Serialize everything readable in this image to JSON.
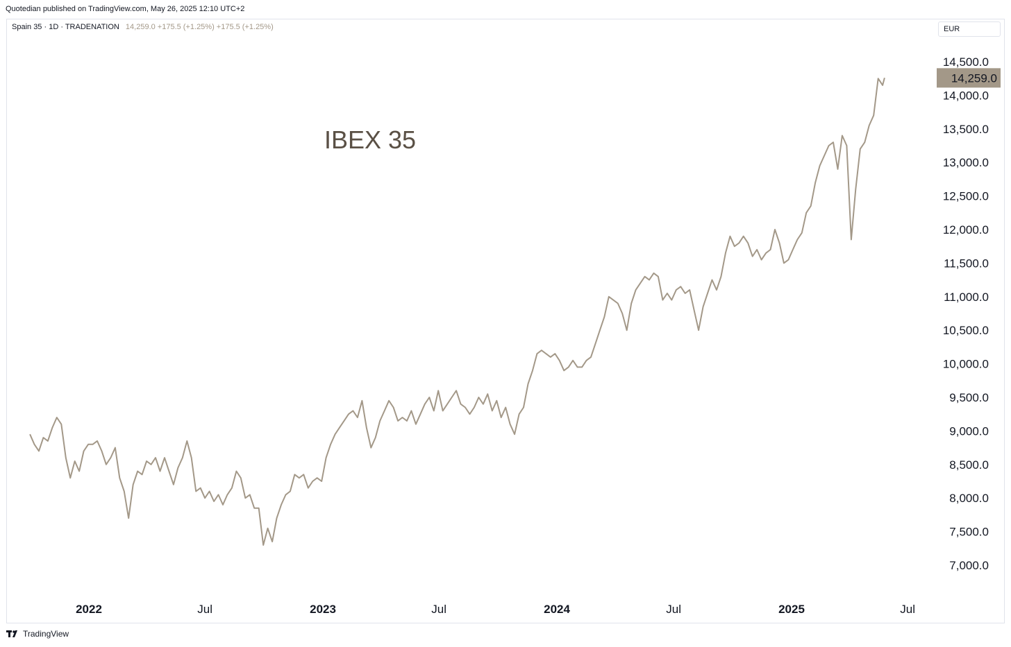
{
  "header": {
    "publisher": "Quotedian published on TradingView.com, May 26, 2025 12:10 UTC+2",
    "symbol": "Spain 35 · 1D · TRADENATION",
    "values": "14,259.0 +175.5 (+1.25%) +175.5 (+1.25%)"
  },
  "currency": "EUR",
  "footer": {
    "brand": "TradingView"
  },
  "colors": {
    "line": "#a39888",
    "price_tag": "#a39888"
  },
  "chart_data": {
    "type": "line",
    "title": "IBEX 35",
    "ylim": [
      6700,
      14500
    ],
    "y_ticks": [
      "7,000.0",
      "7,500.0",
      "8,000.0",
      "8,500.0",
      "9,000.0",
      "9,500.0",
      "10,000.0",
      "10,500.0",
      "11,000.0",
      "11,500.0",
      "12,000.0",
      "12,500.0",
      "13,000.0",
      "13,500.0",
      "14,000.0",
      "14,500.0"
    ],
    "x_ticks": [
      {
        "label": "2022",
        "date": "2022-01-01",
        "major": true
      },
      {
        "label": "Jul",
        "date": "2022-07-01",
        "major": false
      },
      {
        "label": "2023",
        "date": "2023-01-01",
        "major": true
      },
      {
        "label": "Jul",
        "date": "2023-07-01",
        "major": false
      },
      {
        "label": "2024",
        "date": "2024-01-01",
        "major": true
      },
      {
        "label": "Jul",
        "date": "2024-07-01",
        "major": false
      },
      {
        "label": "2025",
        "date": "2025-01-01",
        "major": true
      },
      {
        "label": "Jul",
        "date": "2025-07-01",
        "major": false
      }
    ],
    "last_price": "14,259.0",
    "series": [
      {
        "points": [
          [
            "2021-10-01",
            8950
          ],
          [
            "2021-10-08",
            8800
          ],
          [
            "2021-10-15",
            8700
          ],
          [
            "2021-10-22",
            8900
          ],
          [
            "2021-10-29",
            8850
          ],
          [
            "2021-11-05",
            9050
          ],
          [
            "2021-11-12",
            9200
          ],
          [
            "2021-11-19",
            9100
          ],
          [
            "2021-11-26",
            8600
          ],
          [
            "2021-12-03",
            8300
          ],
          [
            "2021-12-10",
            8550
          ],
          [
            "2021-12-17",
            8400
          ],
          [
            "2021-12-24",
            8700
          ],
          [
            "2021-12-31",
            8800
          ],
          [
            "2022-01-07",
            8800
          ],
          [
            "2022-01-14",
            8850
          ],
          [
            "2022-01-21",
            8700
          ],
          [
            "2022-01-28",
            8500
          ],
          [
            "2022-02-04",
            8600
          ],
          [
            "2022-02-11",
            8750
          ],
          [
            "2022-02-18",
            8300
          ],
          [
            "2022-02-25",
            8100
          ],
          [
            "2022-03-04",
            7700
          ],
          [
            "2022-03-11",
            8200
          ],
          [
            "2022-03-18",
            8400
          ],
          [
            "2022-03-25",
            8350
          ],
          [
            "2022-04-01",
            8550
          ],
          [
            "2022-04-08",
            8500
          ],
          [
            "2022-04-15",
            8600
          ],
          [
            "2022-04-22",
            8400
          ],
          [
            "2022-04-29",
            8600
          ],
          [
            "2022-05-06",
            8400
          ],
          [
            "2022-05-13",
            8200
          ],
          [
            "2022-05-20",
            8450
          ],
          [
            "2022-05-27",
            8600
          ],
          [
            "2022-06-03",
            8850
          ],
          [
            "2022-06-10",
            8600
          ],
          [
            "2022-06-17",
            8100
          ],
          [
            "2022-06-24",
            8150
          ],
          [
            "2022-07-01",
            8000
          ],
          [
            "2022-07-08",
            8100
          ],
          [
            "2022-07-15",
            7950
          ],
          [
            "2022-07-22",
            8050
          ],
          [
            "2022-07-29",
            7900
          ],
          [
            "2022-08-05",
            8050
          ],
          [
            "2022-08-12",
            8150
          ],
          [
            "2022-08-19",
            8400
          ],
          [
            "2022-08-26",
            8300
          ],
          [
            "2022-09-02",
            8000
          ],
          [
            "2022-09-09",
            8050
          ],
          [
            "2022-09-16",
            7850
          ],
          [
            "2022-09-23",
            7850
          ],
          [
            "2022-09-30",
            7300
          ],
          [
            "2022-10-07",
            7550
          ],
          [
            "2022-10-14",
            7350
          ],
          [
            "2022-10-21",
            7700
          ],
          [
            "2022-10-28",
            7900
          ],
          [
            "2022-11-04",
            8050
          ],
          [
            "2022-11-11",
            8100
          ],
          [
            "2022-11-18",
            8350
          ],
          [
            "2022-11-25",
            8300
          ],
          [
            "2022-12-02",
            8350
          ],
          [
            "2022-12-09",
            8150
          ],
          [
            "2022-12-16",
            8250
          ],
          [
            "2022-12-23",
            8300
          ],
          [
            "2022-12-30",
            8250
          ],
          [
            "2023-01-06",
            8600
          ],
          [
            "2023-01-13",
            8800
          ],
          [
            "2023-01-20",
            8950
          ],
          [
            "2023-01-27",
            9050
          ],
          [
            "2023-02-03",
            9150
          ],
          [
            "2023-02-10",
            9250
          ],
          [
            "2023-02-17",
            9300
          ],
          [
            "2023-02-24",
            9200
          ],
          [
            "2023-03-03",
            9450
          ],
          [
            "2023-03-10",
            9050
          ],
          [
            "2023-03-17",
            8750
          ],
          [
            "2023-03-24",
            8900
          ],
          [
            "2023-03-31",
            9150
          ],
          [
            "2023-04-07",
            9300
          ],
          [
            "2023-04-14",
            9450
          ],
          [
            "2023-04-21",
            9350
          ],
          [
            "2023-04-28",
            9150
          ],
          [
            "2023-05-05",
            9200
          ],
          [
            "2023-05-12",
            9150
          ],
          [
            "2023-05-19",
            9300
          ],
          [
            "2023-05-26",
            9100
          ],
          [
            "2023-06-02",
            9250
          ],
          [
            "2023-06-09",
            9400
          ],
          [
            "2023-06-16",
            9500
          ],
          [
            "2023-06-23",
            9300
          ],
          [
            "2023-06-30",
            9600
          ],
          [
            "2023-07-07",
            9300
          ],
          [
            "2023-07-14",
            9400
          ],
          [
            "2023-07-21",
            9500
          ],
          [
            "2023-07-28",
            9600
          ],
          [
            "2023-08-04",
            9400
          ],
          [
            "2023-08-11",
            9350
          ],
          [
            "2023-08-18",
            9250
          ],
          [
            "2023-08-25",
            9350
          ],
          [
            "2023-09-01",
            9500
          ],
          [
            "2023-09-08",
            9400
          ],
          [
            "2023-09-15",
            9550
          ],
          [
            "2023-09-22",
            9300
          ],
          [
            "2023-09-29",
            9450
          ],
          [
            "2023-10-06",
            9200
          ],
          [
            "2023-10-13",
            9350
          ],
          [
            "2023-10-20",
            9100
          ],
          [
            "2023-10-27",
            8950
          ],
          [
            "2023-11-03",
            9250
          ],
          [
            "2023-11-10",
            9350
          ],
          [
            "2023-11-17",
            9700
          ],
          [
            "2023-11-24",
            9900
          ],
          [
            "2023-12-01",
            10150
          ],
          [
            "2023-12-08",
            10200
          ],
          [
            "2023-12-15",
            10150
          ],
          [
            "2023-12-22",
            10100
          ],
          [
            "2023-12-29",
            10150
          ],
          [
            "2024-01-05",
            10050
          ],
          [
            "2024-01-12",
            9900
          ],
          [
            "2024-01-19",
            9950
          ],
          [
            "2024-01-26",
            10050
          ],
          [
            "2024-02-02",
            9950
          ],
          [
            "2024-02-09",
            9950
          ],
          [
            "2024-02-16",
            10050
          ],
          [
            "2024-02-23",
            10100
          ],
          [
            "2024-03-01",
            10300
          ],
          [
            "2024-03-08",
            10500
          ],
          [
            "2024-03-15",
            10700
          ],
          [
            "2024-03-22",
            11000
          ],
          [
            "2024-04-05",
            10900
          ],
          [
            "2024-04-12",
            10750
          ],
          [
            "2024-04-19",
            10500
          ],
          [
            "2024-04-26",
            10900
          ],
          [
            "2024-05-03",
            11100
          ],
          [
            "2024-05-10",
            11200
          ],
          [
            "2024-05-17",
            11300
          ],
          [
            "2024-05-24",
            11250
          ],
          [
            "2024-05-31",
            11350
          ],
          [
            "2024-06-07",
            11300
          ],
          [
            "2024-06-14",
            10950
          ],
          [
            "2024-06-21",
            11050
          ],
          [
            "2024-06-28",
            10950
          ],
          [
            "2024-07-05",
            11100
          ],
          [
            "2024-07-12",
            11150
          ],
          [
            "2024-07-19",
            11050
          ],
          [
            "2024-07-26",
            11100
          ],
          [
            "2024-08-02",
            10800
          ],
          [
            "2024-08-09",
            10500
          ],
          [
            "2024-08-16",
            10850
          ],
          [
            "2024-08-23",
            11050
          ],
          [
            "2024-08-30",
            11250
          ],
          [
            "2024-09-06",
            11100
          ],
          [
            "2024-09-13",
            11300
          ],
          [
            "2024-09-20",
            11650
          ],
          [
            "2024-09-27",
            11900
          ],
          [
            "2024-10-04",
            11750
          ],
          [
            "2024-10-11",
            11800
          ],
          [
            "2024-10-18",
            11900
          ],
          [
            "2024-10-25",
            11800
          ],
          [
            "2024-11-01",
            11600
          ],
          [
            "2024-11-08",
            11700
          ],
          [
            "2024-11-15",
            11550
          ],
          [
            "2024-11-22",
            11650
          ],
          [
            "2024-11-29",
            11700
          ],
          [
            "2024-12-06",
            12000
          ],
          [
            "2024-12-13",
            11800
          ],
          [
            "2024-12-20",
            11500
          ],
          [
            "2024-12-27",
            11550
          ],
          [
            "2025-01-03",
            11700
          ],
          [
            "2025-01-10",
            11850
          ],
          [
            "2025-01-17",
            11950
          ],
          [
            "2025-01-24",
            12250
          ],
          [
            "2025-01-31",
            12350
          ],
          [
            "2025-02-07",
            12700
          ],
          [
            "2025-02-14",
            12950
          ],
          [
            "2025-02-21",
            13100
          ],
          [
            "2025-02-28",
            13250
          ],
          [
            "2025-03-07",
            13300
          ],
          [
            "2025-03-14",
            12900
          ],
          [
            "2025-03-21",
            13400
          ],
          [
            "2025-03-28",
            13250
          ],
          [
            "2025-04-04",
            11850
          ],
          [
            "2025-04-11",
            12600
          ],
          [
            "2025-04-18",
            13200
          ],
          [
            "2025-04-25",
            13300
          ],
          [
            "2025-05-02",
            13550
          ],
          [
            "2025-05-09",
            13700
          ],
          [
            "2025-05-16",
            14250
          ],
          [
            "2025-05-23",
            14150
          ],
          [
            "2025-05-26",
            14259
          ]
        ]
      }
    ]
  }
}
